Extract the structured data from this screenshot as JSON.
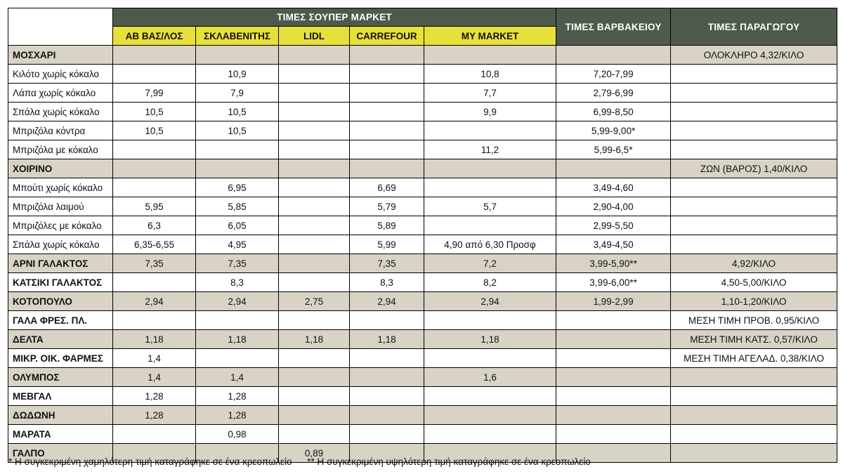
{
  "header": {
    "supermarket_group": "ΤΙΜΕΣ ΣΟΥΠΕΡ ΜΑΡΚΕΤ",
    "varvakeio": "ΤΙΜΕΣ ΒΑΡΒΑΚΕΙΟΥ",
    "producer": "ΤΙΜΕΣ ΠΑΡΑΓΩΓΟΥ",
    "stores": [
      "ΑΒ ΒΑΣ/ΛΟΣ",
      "ΣΚΛΑΒΕΝΙΤΗΣ",
      "LIDL",
      "CARREFOUR",
      "MY MARKET"
    ]
  },
  "rows": [
    {
      "label": "ΜΟΣΧΑΡΙ",
      "bold": true,
      "shaded": true,
      "cells": [
        "",
        "",
        "",
        "",
        "",
        "",
        "ΟΛΟΚΛΗΡΟ 4,32/ΚΙΛΟ"
      ]
    },
    {
      "label": "Κιλότο χωρίς κόκαλο",
      "bold": false,
      "shaded": false,
      "cells": [
        "",
        "10,9",
        "",
        "",
        "10,8",
        "7,20-7,99",
        ""
      ]
    },
    {
      "label": "Λάπα χωρίς  κόκαλο",
      "bold": false,
      "shaded": false,
      "cells": [
        "7,99",
        "7,9",
        "",
        "",
        "7,7",
        "2,79-6,99",
        ""
      ]
    },
    {
      "label": "Σπάλα χωρίς  κόκαλο",
      "bold": false,
      "shaded": false,
      "cells": [
        "10,5",
        "10,5",
        "",
        "",
        "9,9",
        "6,99-8,50",
        ""
      ]
    },
    {
      "label": "Μπριζόλα κόντρα",
      "bold": false,
      "shaded": false,
      "cells": [
        "10,5",
        "10,5",
        "",
        "",
        "",
        "5,99-9,00*",
        ""
      ]
    },
    {
      "label": "Μπριζόλα με  κόκαλο",
      "bold": false,
      "shaded": false,
      "cells": [
        "",
        "",
        "",
        "",
        "11,2",
        "5,99-6,5*",
        ""
      ]
    },
    {
      "label": "ΧΟΙΡΙΝΟ",
      "bold": true,
      "shaded": true,
      "cells": [
        "",
        "",
        "",
        "",
        "",
        "",
        "ΖΩΝ (ΒΑΡΟΣ) 1,40/ΚΙΛΟ"
      ]
    },
    {
      "label": "Μπούτι χωρίς  κόκαλο",
      "bold": false,
      "shaded": false,
      "cells": [
        "",
        "6,95",
        "",
        "6,69",
        "",
        "3,49-4,60",
        ""
      ]
    },
    {
      "label": "Μπριζόλα λαιμού",
      "bold": false,
      "shaded": false,
      "cells": [
        "5,95",
        "5,85",
        "",
        "5,79",
        "5,7",
        "2,90-4,00",
        ""
      ]
    },
    {
      "label": "Μπριζόλες με  κόκαλο",
      "bold": false,
      "shaded": false,
      "cells": [
        "6,3",
        "6,05",
        "",
        "5,89",
        "",
        "2,99-5,50",
        ""
      ]
    },
    {
      "label": "Σπάλα χωρίς  κόκαλο",
      "bold": false,
      "shaded": false,
      "cells": [
        "6,35-6,55",
        "4,95",
        "",
        "5,99",
        "4,90 από 6,30 Προσφ",
        "3,49-4,50",
        ""
      ]
    },
    {
      "label": "ΑΡΝΙ ΓΑΛΑΚΤΟΣ",
      "bold": true,
      "shaded": true,
      "cells": [
        "7,35",
        "7,35",
        "",
        "7,35",
        "7,2",
        "3,99-5,90**",
        "4,92/ΚΙΛΟ"
      ]
    },
    {
      "label": "ΚΑΤΣΙΚΙ ΓΑΛΑΚΤΟΣ",
      "bold": true,
      "shaded": false,
      "cells": [
        "",
        "8,3",
        "",
        "8,3",
        "8,2",
        "3,99-6,00**",
        "4,50-5,00/ΚΙΛΟ"
      ]
    },
    {
      "label": "ΚΟΤΟΠΟΥΛΟ",
      "bold": true,
      "shaded": true,
      "cells": [
        "2,94",
        "2,94",
        "2,75",
        "2,94",
        "2,94",
        "1,99-2,99",
        "1,10-1,20/ΚΙΛΟ"
      ]
    },
    {
      "label": "ΓΑΛΑ ΦΡΕΣ. ΠΛ.",
      "bold": true,
      "shaded": false,
      "cells": [
        "",
        "",
        "",
        "",
        "",
        "",
        "ΜΕΣΗ ΤΙΜΗ ΠΡΟΒ. 0,95/ΚΙΛΟ"
      ]
    },
    {
      "label": "ΔΕΛΤΑ",
      "bold": true,
      "shaded": true,
      "cells": [
        "1,18",
        "1,18",
        "1,18",
        "1,18",
        "1,18",
        "",
        "ΜΕΣΗ ΤΙΜΗ ΚΑΤΣ. 0,57/ΚΙΛΟ"
      ]
    },
    {
      "label": "ΜΙΚΡ. ΟΙΚ. ΦΑΡΜΕΣ",
      "bold": true,
      "shaded": false,
      "cells": [
        "1,4",
        "",
        "",
        "",
        "",
        "",
        "ΜΕΣΗ ΤΙΜΗ ΑΓΕΛΑΔ. 0,38/ΚΙΛΟ"
      ]
    },
    {
      "label": "ΟΛΥΜΠΟΣ",
      "bold": true,
      "shaded": true,
      "cells": [
        "1,4",
        "1,4",
        "",
        "",
        "1,6",
        "",
        ""
      ]
    },
    {
      "label": "ΜΕΒΓΑΛ",
      "bold": true,
      "shaded": false,
      "cells": [
        "1,28",
        "1,28",
        "",
        "",
        "",
        "",
        ""
      ]
    },
    {
      "label": "ΔΩΔΩΝΗ",
      "bold": true,
      "shaded": true,
      "cells": [
        "1,28",
        "1,28",
        "",
        "",
        "",
        "",
        ""
      ]
    },
    {
      "label": "ΜΑΡΑΤΑ",
      "bold": true,
      "shaded": false,
      "cells": [
        "",
        "0,98",
        "",
        "",
        "",
        "",
        ""
      ]
    },
    {
      "label": "ΓΑΛΠΟ",
      "bold": true,
      "shaded": true,
      "cells": [
        "",
        "",
        "0,89",
        "",
        "",
        "",
        ""
      ]
    }
  ],
  "footnotes": {
    "one_star": "* Η συγκεκριμένη χαμηλότερη τιμή καταγράφηκε σε ένα κρεοπωλείο",
    "two_star": "** Η συγκεκριμένη υψηλότερη τιμή καταγράφηκε σε ένα κρεοπωλείο"
  },
  "colors": {
    "header_dark": "#4d5a4c",
    "header_store": "#e8e03a",
    "row_shaded": "#d8d3c4"
  }
}
